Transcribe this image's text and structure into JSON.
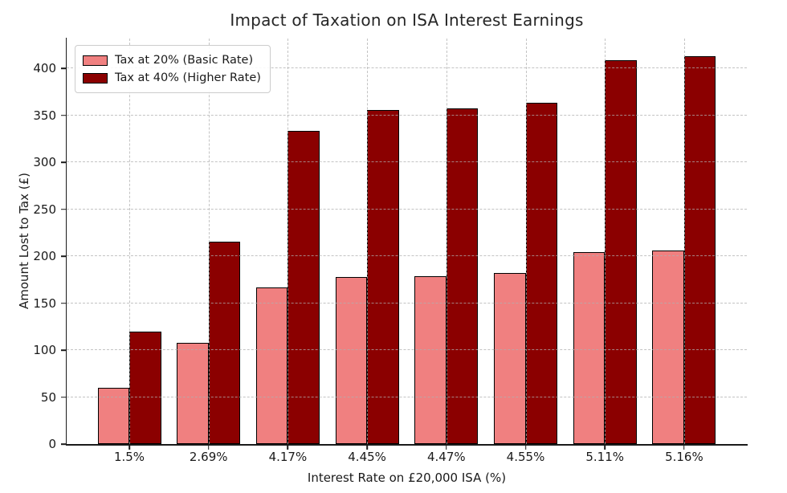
{
  "chart_data": {
    "type": "bar",
    "title": "Impact of Taxation on ISA Interest Earnings",
    "xlabel": "Interest Rate on £20,000 ISA (%)",
    "ylabel": "Amount Lost to Tax (£)",
    "categories": [
      "1.5%",
      "2.69%",
      "4.17%",
      "4.45%",
      "4.47%",
      "4.55%",
      "5.11%",
      "5.16%"
    ],
    "series": [
      {
        "name": "Tax at 20% (Basic Rate)",
        "color": "#F08080",
        "values": [
          60.0,
          107.6,
          166.8,
          178.0,
          178.8,
          182.0,
          204.4,
          206.4
        ]
      },
      {
        "name": "Tax at 40% (Higher Rate)",
        "color": "#8B0000",
        "values": [
          120.0,
          215.2,
          333.6,
          356.0,
          357.6,
          364.0,
          408.8,
          412.8
        ]
      }
    ],
    "yticks": [
      0,
      50,
      100,
      150,
      200,
      250,
      300,
      350,
      400
    ],
    "ylim": [
      0,
      432
    ],
    "grid": true,
    "grid_style": "dashed",
    "grid_color": "#afafaf",
    "bar_edge_color": "#000000",
    "legend_position": "upper-left",
    "text_color": "#1a1a1a"
  }
}
